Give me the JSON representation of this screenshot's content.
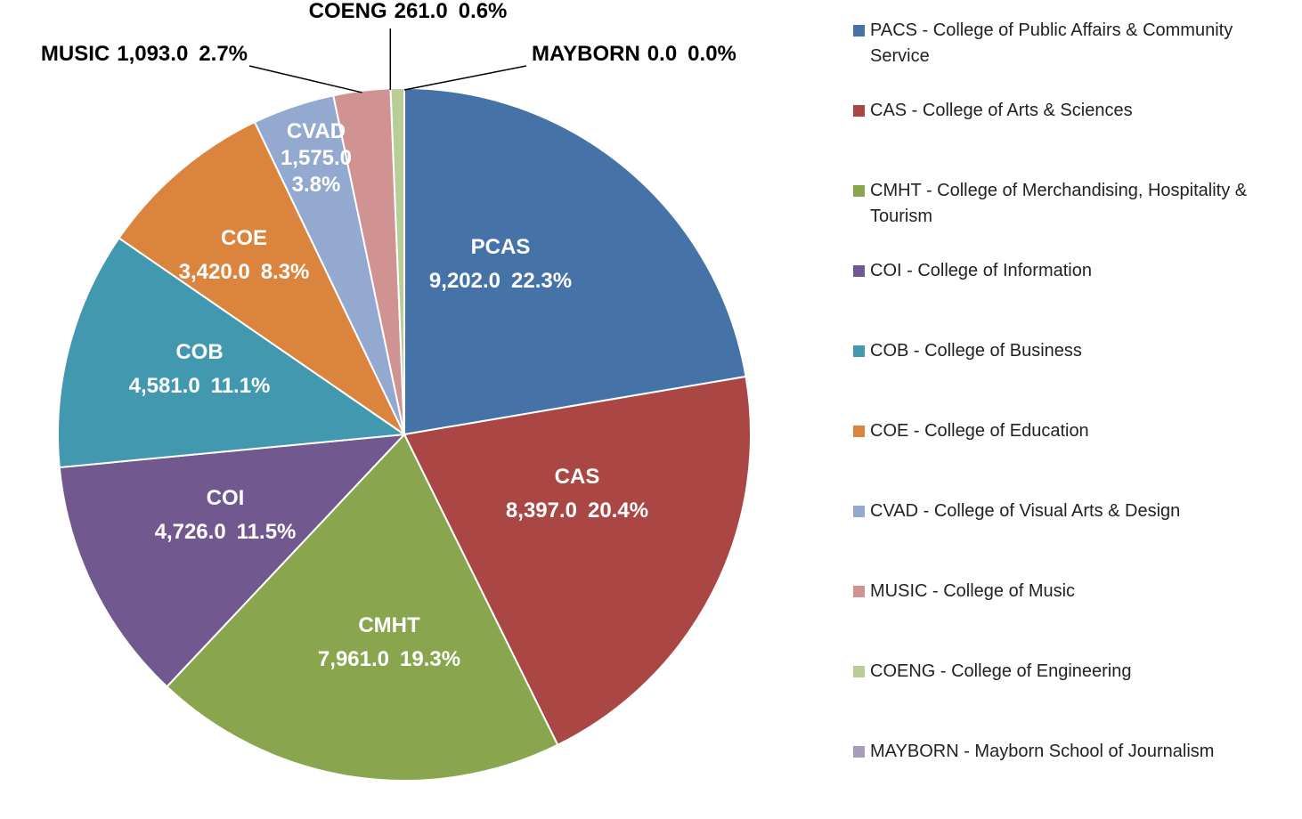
{
  "chart_data": {
    "type": "pie",
    "categories": [
      "PACS - College of Public Affairs & Community Service",
      "CAS - College of Arts & Sciences",
      "CMHT - College of Merchandising, Hospitality & Tourism",
      "COI - College of Information",
      "COB - College of Business",
      "COE - College of Education",
      "CVAD - College of Visual Arts & Design",
      "MUSIC - College of Music",
      "COENG - College of Engineering",
      "MAYBORN - Mayborn School of Journalism"
    ],
    "labels": [
      "PCAS",
      "CAS",
      "CMHT",
      "COI",
      "COB",
      "COE",
      "CVAD",
      "MUSIC",
      "COENG",
      "MAYBORN"
    ],
    "values": [
      9202,
      8397,
      7961,
      4726,
      4581,
      3420,
      1575,
      1093,
      261,
      0
    ],
    "value_labels": [
      "9,202.0",
      "8,397.0",
      "7,961.0",
      "4,726.0",
      "4,581.0",
      "3,420.0",
      "1,575.0",
      "1,093.0",
      "261.0",
      "0.0"
    ],
    "percents": [
      22.3,
      20.4,
      19.3,
      11.5,
      11.1,
      8.3,
      3.8,
      2.7,
      0.6,
      0.0
    ],
    "percent_labels": [
      "22.3%",
      "20.4%",
      "19.3%",
      "11.5%",
      "11.1%",
      "8.3%",
      "3.8%",
      "2.7%",
      "0.6%",
      "0.0%"
    ],
    "colors": [
      "#4572a7",
      "#aa4643",
      "#89a54e",
      "#71588f",
      "#4198af",
      "#db843d",
      "#93a9cf",
      "#d19392",
      "#b9cd96",
      "#a99bbd"
    ],
    "legend": "right"
  }
}
